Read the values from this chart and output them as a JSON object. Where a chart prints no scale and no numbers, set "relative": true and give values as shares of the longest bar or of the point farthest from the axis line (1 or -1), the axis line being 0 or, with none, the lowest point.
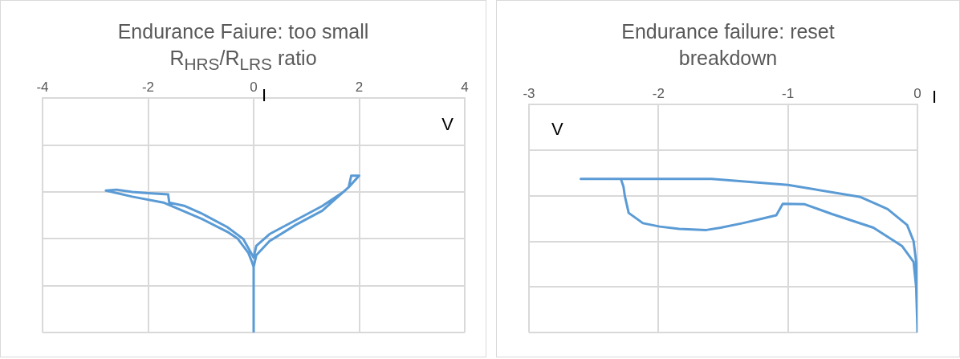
{
  "chart_data": [
    {
      "type": "line",
      "title": "Endurance Faiure: too small R$_{HRS}$/R$_{LRS}$ ratio",
      "xlabel": "V",
      "ylabel": "I",
      "relative": true,
      "xlim": [
        -4,
        4
      ],
      "xticks": [
        -4,
        -2,
        0,
        2,
        4
      ],
      "grid": true,
      "marker": "none",
      "legend": false,
      "series": [
        {
          "color": "#5b9bd5",
          "x": [
            0,
            0,
            -0.03,
            -0.1,
            -0.3,
            -0.5,
            -0.98,
            -1.71,
            -2.3,
            -2.8,
            -2.6,
            -2.3,
            -2.0,
            -1.62,
            -1.6,
            -1.3,
            -1.0,
            -0.5,
            -0.2,
            -0.05,
            0,
            0.05,
            0.3,
            0.8,
            1.3,
            1.7,
            1.8,
            1.85,
            2.0,
            1.8,
            1.3,
            0.8,
            0.3,
            0.05,
            0
          ],
          "values": [
            -1,
            -0.72,
            -0.7,
            -0.66,
            -0.6,
            -0.57,
            -0.515,
            -0.445,
            -0.42,
            -0.394,
            -0.39,
            -0.4,
            -0.405,
            -0.41,
            -0.445,
            -0.46,
            -0.49,
            -0.55,
            -0.6,
            -0.66,
            -0.68,
            -0.63,
            -0.58,
            -0.52,
            -0.46,
            -0.4,
            -0.38,
            -0.33,
            -0.33,
            -0.38,
            -0.48,
            -0.54,
            -0.61,
            -0.67,
            -0.72
          ]
        }
      ]
    },
    {
      "type": "line",
      "title": "Endurance failure: reset breakdown",
      "xlabel": "V",
      "ylabel": "I",
      "relative": true,
      "xlim": [
        -3,
        0
      ],
      "xticks": [
        -3,
        -2,
        -1,
        0
      ],
      "grid": true,
      "marker": "none",
      "legend": false,
      "series": [
        {
          "color": "#5b9bd5",
          "x": [
            -2.29,
            -2.27,
            -2.26,
            -2.23,
            -2.12,
            -1.99,
            -1.84,
            -1.63,
            -1.52,
            -1.35,
            -1.2,
            -1.09,
            -1.04,
            -0.87,
            -0.66,
            -0.34,
            -0.12,
            -0.03,
            -0.01,
            0,
            0,
            -0.01,
            -0.03,
            -0.08,
            -0.23,
            -0.44,
            -1.0,
            -1.59,
            -2.6
          ],
          "values": [
            -0.326,
            -0.36,
            -0.4,
            -0.475,
            -0.52,
            -0.535,
            -0.545,
            -0.55,
            -0.54,
            -0.52,
            -0.5,
            -0.485,
            -0.435,
            -0.437,
            -0.48,
            -0.54,
            -0.62,
            -0.69,
            -0.8,
            -0.986,
            -1,
            -0.69,
            -0.599,
            -0.528,
            -0.458,
            -0.405,
            -0.352,
            -0.326,
            -0.326
          ]
        }
      ]
    }
  ]
}
